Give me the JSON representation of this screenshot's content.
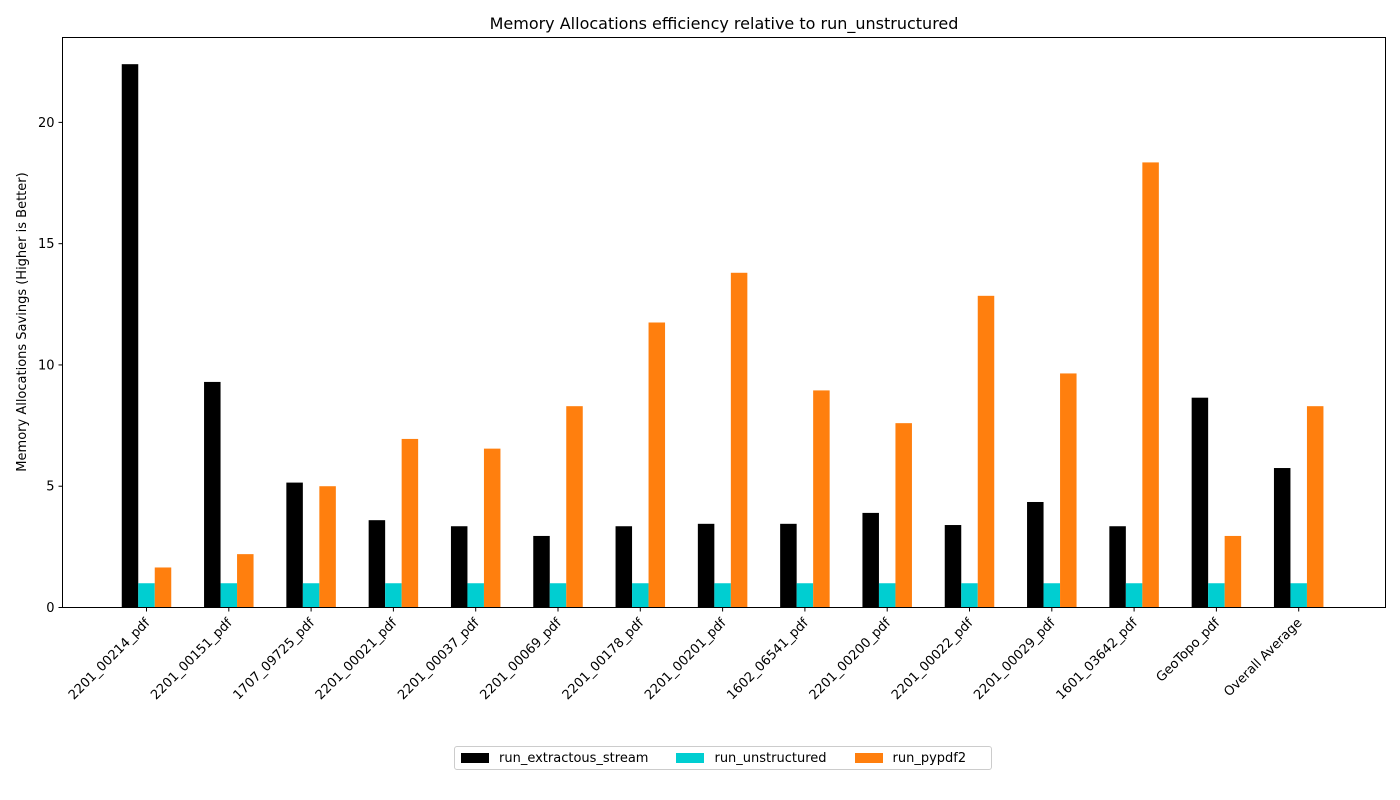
{
  "chart_data": {
    "type": "bar",
    "title": "Memory Allocations efficiency relative to run_unstructured",
    "xlabel": "",
    "ylabel": "Memory Allocations Savings (Higher is Better)",
    "ylim": [
      0,
      23.5
    ],
    "yticks": [
      0,
      5,
      10,
      15,
      20
    ],
    "grid": false,
    "legend_position": "bottom-center",
    "categories": [
      "2201_00214_pdf",
      "2201_00151_pdf",
      "1707_09725_pdf",
      "2201_00021_pdf",
      "2201_00037_pdf",
      "2201_00069_pdf",
      "2201_00178_pdf",
      "2201_00201_pdf",
      "1602_06541_pdf",
      "2201_00200_pdf",
      "2201_00022_pdf",
      "2201_00029_pdf",
      "1601_03642_pdf",
      "GeoTopo_pdf",
      "Overall Average"
    ],
    "series": [
      {
        "name": "run_extractous_stream",
        "color": "#000000",
        "values": [
          22.4,
          9.3,
          5.15,
          3.6,
          3.35,
          2.95,
          3.35,
          3.45,
          3.45,
          3.9,
          3.4,
          4.35,
          3.35,
          8.65,
          5.75
        ]
      },
      {
        "name": "run_unstructured",
        "color": "#00CED1",
        "values": [
          1.0,
          1.0,
          1.0,
          1.0,
          1.0,
          1.0,
          1.0,
          1.0,
          1.0,
          1.0,
          1.0,
          1.0,
          1.0,
          1.0,
          1.0
        ]
      },
      {
        "name": "run_pypdf2",
        "color": "#FF7F0E",
        "values": [
          1.65,
          2.2,
          5.0,
          6.95,
          6.55,
          8.3,
          11.75,
          13.8,
          8.95,
          7.6,
          12.85,
          9.65,
          18.35,
          2.95,
          8.3
        ]
      }
    ]
  }
}
